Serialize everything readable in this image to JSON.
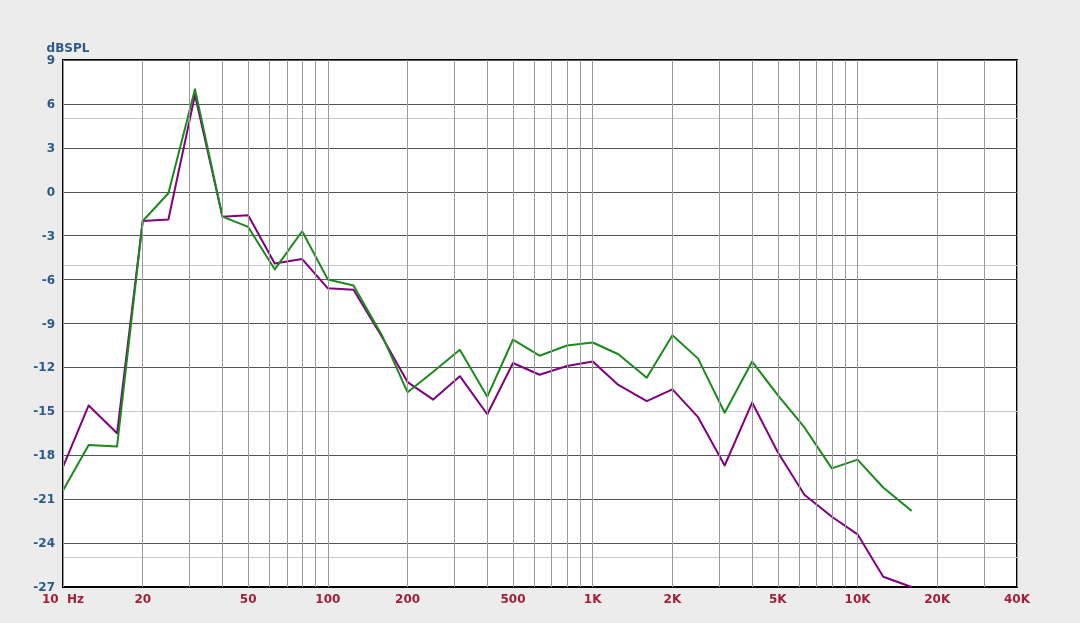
{
  "chart_data": {
    "type": "line",
    "ylabel": "dBSPL",
    "x": [
      10,
      12.5,
      16,
      20,
      25,
      31.5,
      40,
      50,
      63,
      80,
      100,
      125,
      160,
      200,
      250,
      315,
      400,
      500,
      630,
      800,
      1000,
      1250,
      1600,
      2000,
      2500,
      3150,
      4000,
      5000,
      6300,
      8000,
      10000,
      12500,
      16000
    ],
    "series": [
      {
        "color": "#800080",
        "values": [
          -18.8,
          -14.6,
          -16.5,
          -2.0,
          -1.9,
          6.6,
          -1.7,
          -1.6,
          -4.9,
          -4.6,
          -6.6,
          -6.7,
          -9.9,
          -13.0,
          -14.2,
          -12.6,
          -15.2,
          -11.7,
          -12.5,
          -11.9,
          -11.6,
          -13.2,
          -14.3,
          -13.5,
          -15.4,
          -18.7,
          -14.4,
          -17.8,
          -20.7,
          -22.2,
          -23.4,
          -26.3,
          -27.0
        ]
      },
      {
        "color": "#1a8a1a",
        "values": [
          -20.4,
          -17.3,
          -17.4,
          -2.0,
          -0.1,
          7.0,
          -1.7,
          -2.4,
          -5.3,
          -2.7,
          -6.0,
          -6.4,
          -9.8,
          -13.7,
          -12.3,
          -10.8,
          -14.0,
          -10.1,
          -11.2,
          -10.5,
          -10.3,
          -11.1,
          -12.7,
          -9.8,
          -11.4,
          -15.1,
          -11.6,
          -13.9,
          -16.1,
          -18.9,
          -18.3,
          -20.2,
          -21.8
        ]
      }
    ],
    "log": "x",
    "xlim": [
      10,
      40000
    ],
    "xticks": [
      {
        "value": 10,
        "label": "10  Hz"
      },
      20,
      50,
      100,
      200,
      500,
      {
        "value": 1000,
        "label": "1K"
      },
      {
        "value": 2000,
        "label": "2K"
      },
      {
        "value": 5000,
        "label": "5K"
      },
      {
        "value": 10000,
        "label": "10K"
      },
      {
        "value": 20000,
        "label": "20K"
      },
      {
        "value": 40000,
        "label": "40K"
      }
    ],
    "ylim": [
      -27,
      9
    ],
    "yticks": [
      -27,
      -24,
      -21,
      -18,
      -15,
      -12,
      -9,
      -6,
      -3,
      0,
      3,
      6,
      9
    ],
    "grid": true,
    "marker": "none",
    "line_style": "solid"
  }
}
